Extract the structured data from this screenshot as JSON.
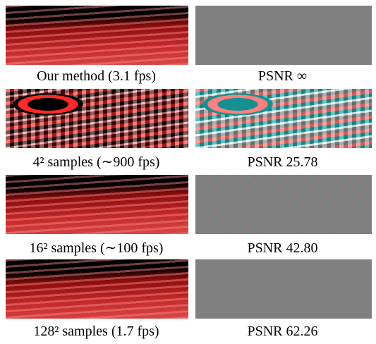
{
  "rows": [
    {
      "left_caption": "Our method (3.1 fps)",
      "right_caption": "PSNR ∞"
    },
    {
      "left_caption": "4² samples (∼900 fps)",
      "right_caption": "PSNR 25.78"
    },
    {
      "left_caption": "16² samples (∼100 fps)",
      "right_caption": "PSNR 42.80"
    },
    {
      "left_caption": "128² samples (1.7 fps)",
      "right_caption": "PSNR 62.26"
    }
  ]
}
